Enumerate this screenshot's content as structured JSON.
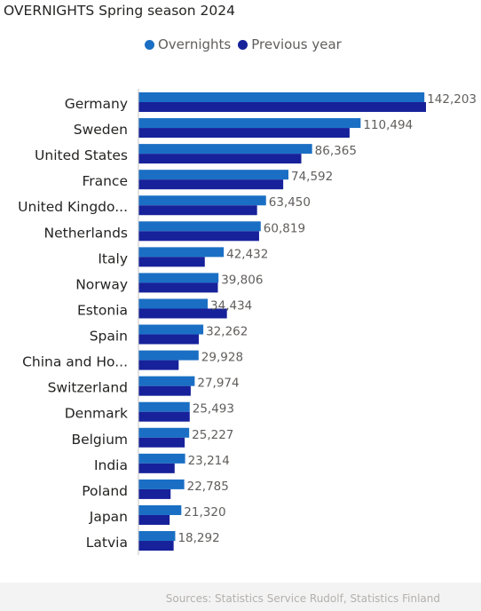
{
  "title": "OVERNIGHTS Spring season 2024",
  "legend": {
    "items": [
      {
        "label": "Overnights",
        "color": "#1a6fc4"
      },
      {
        "label": "Previous year",
        "color": "#16219a"
      }
    ]
  },
  "chart_data": {
    "type": "bar",
    "orientation": "horizontal",
    "title": "OVERNIGHTS Spring season 2024",
    "categories": [
      "Germany",
      "Sweden",
      "United States",
      "France",
      "United Kingdo...",
      "Netherlands",
      "Italy",
      "Norway",
      "Estonia",
      "Spain",
      "China and Ho...",
      "Switzerland",
      "Denmark",
      "Belgium",
      "India",
      "Poland",
      "Japan",
      "Latvia"
    ],
    "series": [
      {
        "name": "Overnights",
        "color": "#1a6fc4",
        "values": [
          142203,
          110494,
          86365,
          74592,
          63450,
          60819,
          42432,
          39806,
          34434,
          32262,
          29928,
          27974,
          25493,
          25227,
          23214,
          22785,
          21320,
          18292
        ]
      },
      {
        "name": "Previous year",
        "color": "#16219a",
        "values": [
          143000,
          105000,
          81000,
          72000,
          59000,
          60000,
          33000,
          39500,
          44000,
          30000,
          20000,
          26000,
          25500,
          23000,
          18000,
          16000,
          15500,
          17500
        ]
      }
    ],
    "data_labels": [
      "142,203",
      "110,494",
      "86,365",
      "74,592",
      "63,450",
      "60,819",
      "42,432",
      "39,806",
      "34,434",
      "32,262",
      "29,928",
      "27,974",
      "25,493",
      "25,227",
      "23,214",
      "22,785",
      "21,320",
      "18,292"
    ],
    "xlim": [
      0,
      143000
    ],
    "legend_position": "top",
    "grid": false
  },
  "footer": {
    "source": "Sources: Statistics Service Rudolf, Statistics Finland"
  }
}
